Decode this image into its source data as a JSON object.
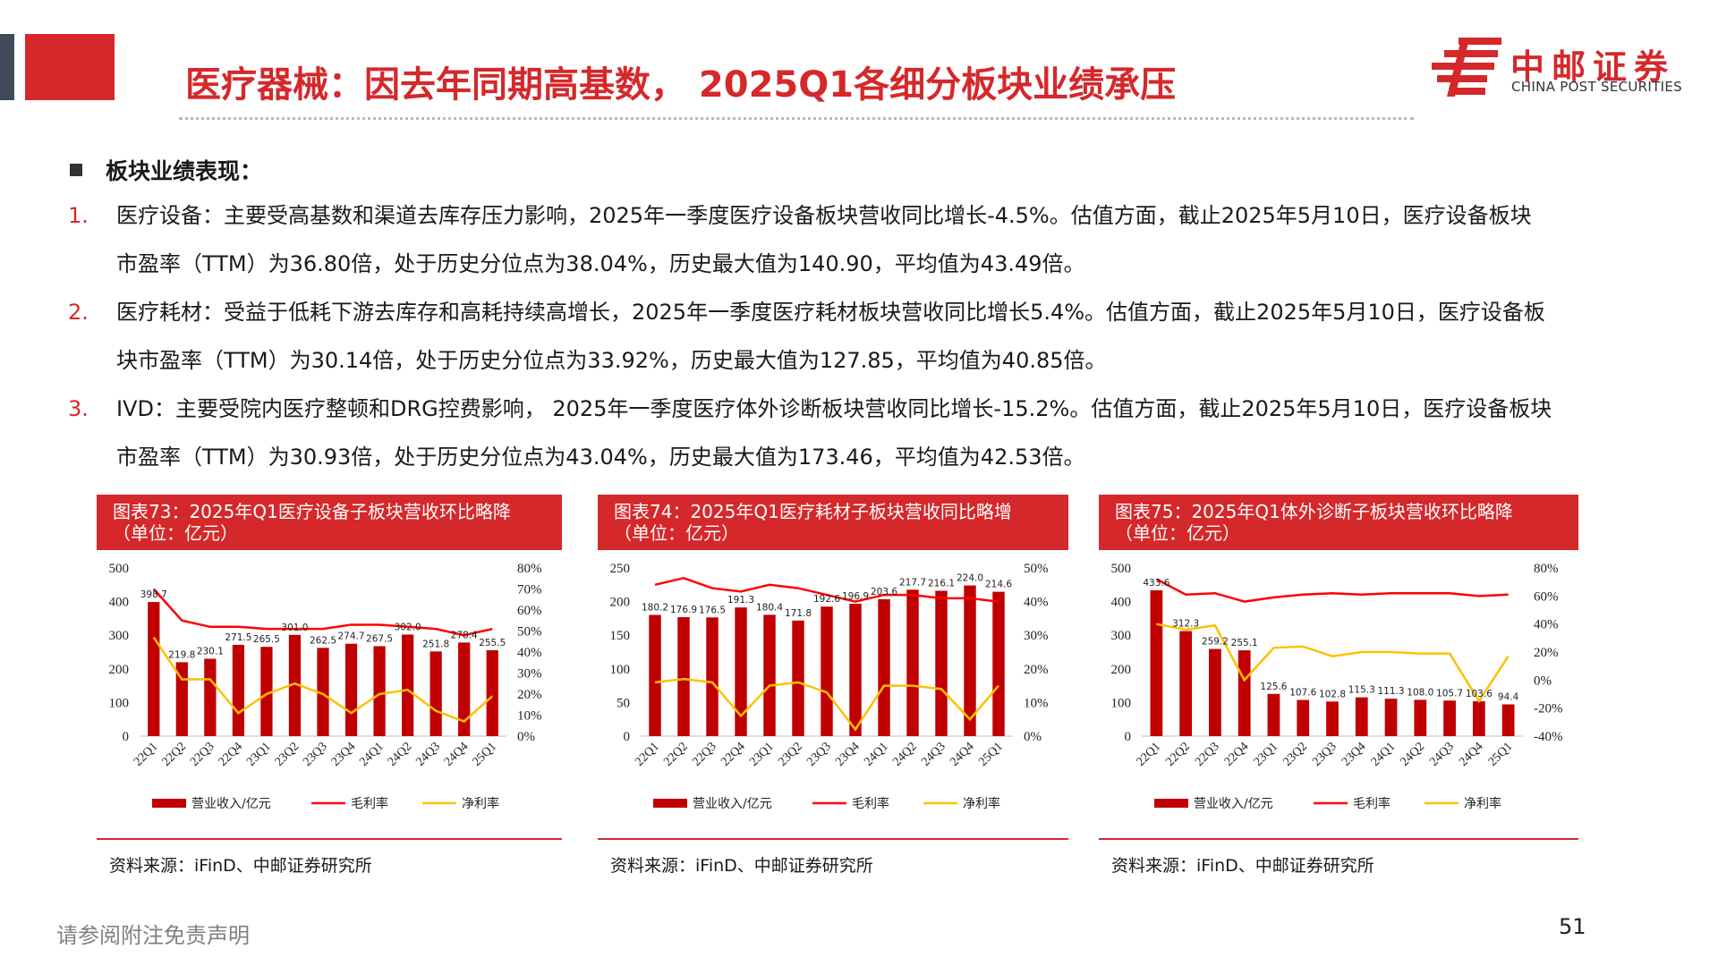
{
  "header": {
    "title": "医疗器械：因去年同期高基数， 2025Q1各细分板块业绩承压",
    "logo_cn": "中邮证券",
    "logo_en": "CHINA POST SECURITIES",
    "brand_color": "#d5282b"
  },
  "section": {
    "heading": "板块业绩表现："
  },
  "items": [
    {
      "num": "1.",
      "line1": "医疗设备：主要受高基数和渠道去库存压力影响，2025年一季度医疗设备板块营收同比增长-4.5%。估值方面，截止2025年5月10日，医疗设备板块",
      "line2": "市盈率（TTM）为36.80倍，处于历史分位点为38.04%，历史最大值为140.90，平均值为43.49倍。"
    },
    {
      "num": "2.",
      "line1": "医疗耗材：受益于低耗下游去库存和高耗持续高增长，2025年一季度医疗耗材板块营收同比增长5.4%。估值方面，截止2025年5月10日，医疗设备板",
      "line2": "块市盈率（TTM）为30.14倍，处于历史分位点为33.92%，历史最大值为127.85，平均值为40.85倍。"
    },
    {
      "num": "3.",
      "line1": "IVD：主要受院内医疗整顿和DRG控费影响， 2025年一季度医疗体外诊断板块营收同比增长-15.2%。估值方面，截止2025年5月10日，医疗设备板块",
      "line2": "市盈率（TTM）为30.93倍，处于历史分位点为43.04%，历史最大值为173.46，平均值为42.53倍。"
    }
  ],
  "chart_data": [
    {
      "type": "bar",
      "title_line1": "图表73：2025年Q1医疗设备子板块营收环比略降",
      "title_line2": "（单位：亿元）",
      "categories": [
        "22Q1",
        "22Q2",
        "22Q3",
        "22Q4",
        "23Q1",
        "23Q2",
        "23Q3",
        "23Q4",
        "24Q1",
        "24Q2",
        "24Q3",
        "24Q4",
        "25Q1"
      ],
      "series": [
        {
          "name": "营业收入/亿元",
          "kind": "bar",
          "axis": "left",
          "color": "#c00000",
          "values": [
            398.7,
            219.8,
            230.1,
            271.5,
            265.5,
            301.0,
            262.5,
            274.7,
            267.5,
            302.0,
            251.8,
            278.4,
            255.5
          ]
        },
        {
          "name": "毛利率",
          "kind": "line",
          "axis": "right",
          "color": "#ff0000",
          "values": [
            70,
            55,
            52,
            52,
            51,
            51,
            51,
            53,
            53,
            52,
            51,
            48,
            51
          ]
        },
        {
          "name": "净利率",
          "kind": "line",
          "axis": "right",
          "color": "#ffc000",
          "values": [
            47,
            27,
            27,
            11,
            20,
            25,
            20,
            11,
            20,
            22,
            12,
            7,
            19
          ]
        }
      ],
      "left_ticks": [
        "0",
        "100",
        "200",
        "300",
        "400",
        "500"
      ],
      "right_ticks": [
        "0%",
        "10%",
        "20%",
        "30%",
        "40%",
        "50%",
        "60%",
        "70%",
        "80%"
      ],
      "ylim_left": [
        0,
        500
      ],
      "ylim_right": [
        0,
        80
      ],
      "source": "资料来源：iFinD、中邮证券研究所"
    },
    {
      "type": "bar",
      "title_line1": "图表74：2025年Q1医疗耗材子板块营收同比略增",
      "title_line2": "（单位：亿元）",
      "categories": [
        "22Q1",
        "22Q2",
        "22Q3",
        "22Q4",
        "23Q1",
        "23Q2",
        "23Q3",
        "23Q4",
        "24Q1",
        "24Q2",
        "24Q3",
        "24Q4",
        "25Q1"
      ],
      "series": [
        {
          "name": "营业收入/亿元",
          "kind": "bar",
          "axis": "left",
          "color": "#c00000",
          "values": [
            180.2,
            176.9,
            176.5,
            191.3,
            180.4,
            171.8,
            192.6,
            196.9,
            203.6,
            217.7,
            216.1,
            224.0,
            214.6
          ]
        },
        {
          "name": "毛利率",
          "kind": "line",
          "axis": "right",
          "color": "#ff0000",
          "values": [
            45,
            47,
            44,
            43,
            45,
            44,
            42,
            40,
            42,
            42,
            41,
            41,
            40
          ]
        },
        {
          "name": "净利率",
          "kind": "line",
          "axis": "right",
          "color": "#ffc000",
          "values": [
            16,
            17,
            16,
            6,
            15,
            16,
            13,
            2,
            15,
            15,
            14,
            5,
            15
          ]
        }
      ],
      "left_ticks": [
        "0",
        "50",
        "100",
        "150",
        "200",
        "250"
      ],
      "right_ticks": [
        "0%",
        "10%",
        "20%",
        "30%",
        "40%",
        "50%"
      ],
      "ylim_left": [
        0,
        250
      ],
      "ylim_right": [
        0,
        50
      ],
      "source": "资料来源：iFinD、中邮证券研究所"
    },
    {
      "type": "bar",
      "title_line1": "图表75：2025年Q1体外诊断子板块营收环比略降",
      "title_line2": "（单位：亿元）",
      "categories": [
        "22Q1",
        "22Q2",
        "22Q3",
        "22Q4",
        "23Q1",
        "23Q2",
        "23Q3",
        "23Q4",
        "24Q1",
        "24Q2",
        "24Q3",
        "24Q4",
        "25Q1"
      ],
      "series": [
        {
          "name": "营业收入/亿元",
          "kind": "bar",
          "axis": "left",
          "color": "#c00000",
          "values": [
            433.6,
            312.3,
            259.2,
            255.1,
            125.6,
            107.6,
            102.8,
            115.3,
            111.3,
            108.0,
            105.7,
            103.6,
            94.4
          ]
        },
        {
          "name": "毛利率",
          "kind": "line",
          "axis": "right",
          "color": "#ff0000",
          "values": [
            72,
            61,
            62,
            56,
            59,
            61,
            62,
            61,
            62,
            62,
            62,
            60,
            61
          ]
        },
        {
          "name": "净利率",
          "kind": "line",
          "axis": "right",
          "color": "#ffc000",
          "values": [
            40,
            36,
            39,
            0,
            23,
            24,
            17,
            20,
            20,
            19,
            19,
            -15,
            17
          ]
        }
      ],
      "left_ticks": [
        "0",
        "100",
        "200",
        "300",
        "400",
        "500"
      ],
      "right_ticks": [
        "-40%",
        "-20%",
        "0%",
        "20%",
        "40%",
        "60%",
        "80%"
      ],
      "ylim_left": [
        0,
        500
      ],
      "ylim_right": [
        -40,
        80
      ],
      "source": "资料来源：iFinD、中邮证券研究所"
    }
  ],
  "footer": {
    "disclaimer": "请参阅附注免责声明",
    "page": "51"
  }
}
